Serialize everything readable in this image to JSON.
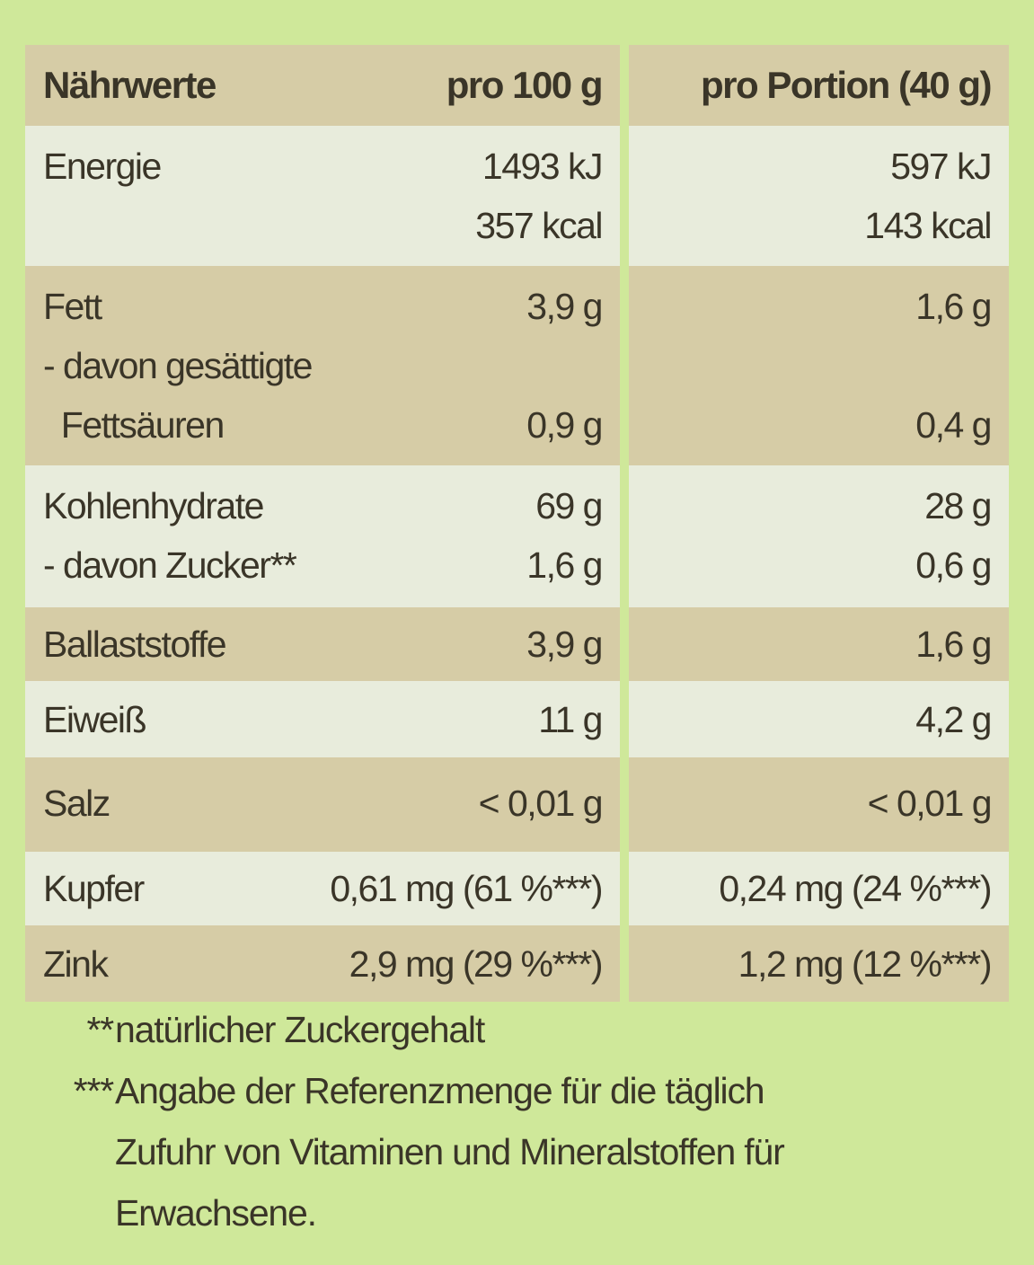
{
  "colors": {
    "background": "#cfe89a",
    "row_dark": "#d6cca6",
    "row_light": "#e8ecdc",
    "text": "#3a3528"
  },
  "header": {
    "label": "Nährwerte",
    "per100": "pro 100 g",
    "portion": "pro Portion (40 g)"
  },
  "rows": [
    {
      "name": "energie",
      "lines": [
        {
          "label": "Energie",
          "per100": "1493 kJ",
          "portion": "597 kJ"
        },
        {
          "label": "",
          "per100": "357 kcal",
          "portion": "143 kcal"
        }
      ]
    },
    {
      "name": "fett",
      "lines": [
        {
          "label": "Fett",
          "per100": "3,9 g",
          "portion": "1,6 g"
        },
        {
          "label": "- davon gesättigte",
          "per100": "",
          "portion": ""
        },
        {
          "label": "  Fettsäuren",
          "per100": "0,9 g",
          "portion": "0,4 g"
        }
      ]
    },
    {
      "name": "kohlenhydrate",
      "lines": [
        {
          "label": "Kohlenhydrate",
          "per100": "69 g",
          "portion": "28 g"
        },
        {
          "label": "- davon Zucker**",
          "per100": "1,6 g",
          "portion": "0,6 g"
        }
      ]
    },
    {
      "name": "ballaststoffe",
      "lines": [
        {
          "label": "Ballaststoffe",
          "per100": "3,9 g",
          "portion": "1,6 g"
        }
      ]
    },
    {
      "name": "eiweiss",
      "lines": [
        {
          "label": "Eiweiß",
          "per100": "11 g",
          "portion": "4,2 g"
        }
      ]
    },
    {
      "name": "salz",
      "lines": [
        {
          "label": "Salz",
          "per100": "< 0,01 g",
          "portion": "< 0,01 g"
        }
      ]
    },
    {
      "name": "kupfer",
      "lines": [
        {
          "label": "Kupfer",
          "per100": "0,61 mg (61 %***)",
          "portion": "0,24 mg (24 %***)"
        }
      ]
    },
    {
      "name": "zink",
      "lines": [
        {
          "label": "Zink",
          "per100": "2,9 mg (29 %***)",
          "portion": "1,2 mg (12 %***)"
        }
      ]
    }
  ],
  "footnotes": [
    {
      "mark": "**",
      "lines": [
        "natürlicher Zuckergehalt"
      ]
    },
    {
      "mark": "***",
      "lines": [
        "Angabe der Referenzmenge für die täglich",
        "Zufuhr von Vitaminen und Mineralstoffen für",
        "Erwachsene."
      ]
    }
  ]
}
